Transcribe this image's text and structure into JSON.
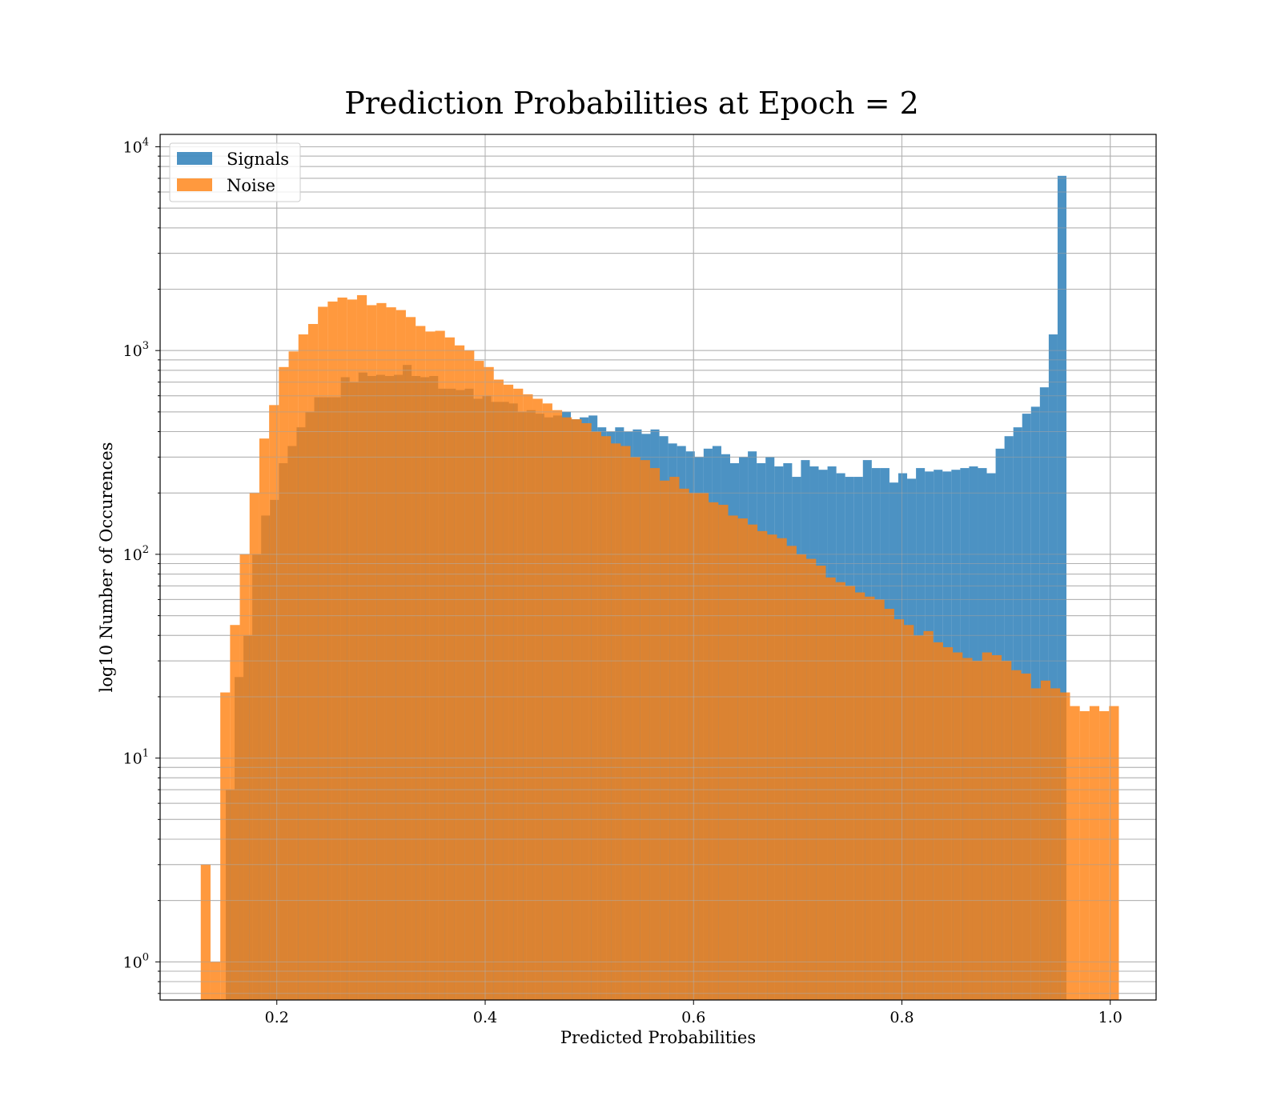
{
  "chart_data": {
    "type": "bar",
    "subtype": "overlaid-histogram",
    "title": "Prediction Probabilities at Epoch = 2",
    "xlabel": "Predicted Probabilities",
    "ylabel": "log10 Number of Occurences",
    "yscale": "log",
    "xlim": [
      0.088,
      1.044
    ],
    "ylim": [
      0.65,
      11500
    ],
    "x_ticks": [
      0.2,
      0.4,
      0.6,
      0.8,
      1.0
    ],
    "x_tick_labels": [
      "0.2",
      "0.4",
      "0.6",
      "0.8",
      "1.0"
    ],
    "y_ticks": [
      1,
      10,
      100,
      1000,
      10000
    ],
    "y_tick_labels": [
      {
        "base": "10",
        "exp": "0"
      },
      {
        "base": "10",
        "exp": "1"
      },
      {
        "base": "10",
        "exp": "2"
      },
      {
        "base": "10",
        "exp": "3"
      },
      {
        "base": "10",
        "exp": "4"
      }
    ],
    "grid": true,
    "legend_position": "top-left",
    "legend": [
      "Signals",
      "Noise"
    ],
    "series": [
      {
        "name": "Signals",
        "color": "#1f77b4",
        "bin_start": 0.151,
        "bin_width": 0.008494,
        "values": [
          7,
          25,
          40,
          100,
          155,
          185,
          280,
          340,
          420,
          500,
          590,
          590,
          590,
          740,
          700,
          780,
          750,
          760,
          750,
          760,
          850,
          750,
          740,
          750,
          650,
          650,
          640,
          650,
          580,
          600,
          560,
          560,
          550,
          500,
          510,
          490,
          470,
          480,
          500,
          460,
          470,
          480,
          420,
          400,
          420,
          400,
          410,
          390,
          410,
          380,
          350,
          340,
          320,
          300,
          330,
          340,
          310,
          280,
          300,
          320,
          280,
          300,
          270,
          280,
          240,
          290,
          270,
          260,
          270,
          250,
          240,
          240,
          290,
          265,
          265,
          225,
          250,
          235,
          265,
          255,
          260,
          255,
          260,
          265,
          270,
          265,
          250,
          330,
          380,
          420,
          490,
          530,
          660,
          1200,
          7200
        ]
      },
      {
        "name": "Noise",
        "color": "#ff7f0e",
        "bin_start": 0.127,
        "bin_width": 0.009375,
        "values": [
          3,
          1,
          21,
          45,
          100,
          200,
          370,
          540,
          830,
          990,
          1200,
          1350,
          1640,
          1740,
          1820,
          1780,
          1870,
          1670,
          1710,
          1630,
          1580,
          1460,
          1320,
          1240,
          1250,
          1160,
          1060,
          1000,
          890,
          830,
          720,
          680,
          650,
          610,
          580,
          550,
          510,
          470,
          460,
          440,
          400,
          380,
          350,
          340,
          300,
          290,
          265,
          230,
          240,
          210,
          200,
          200,
          180,
          175,
          155,
          150,
          140,
          130,
          125,
          120,
          110,
          100,
          95,
          88,
          77,
          73,
          70,
          65,
          62,
          60,
          54,
          48,
          45,
          40,
          42,
          37,
          35,
          33,
          31,
          30,
          33,
          32,
          30,
          27,
          26,
          22,
          24,
          22,
          21,
          18,
          17,
          18,
          17,
          18
        ]
      }
    ]
  }
}
